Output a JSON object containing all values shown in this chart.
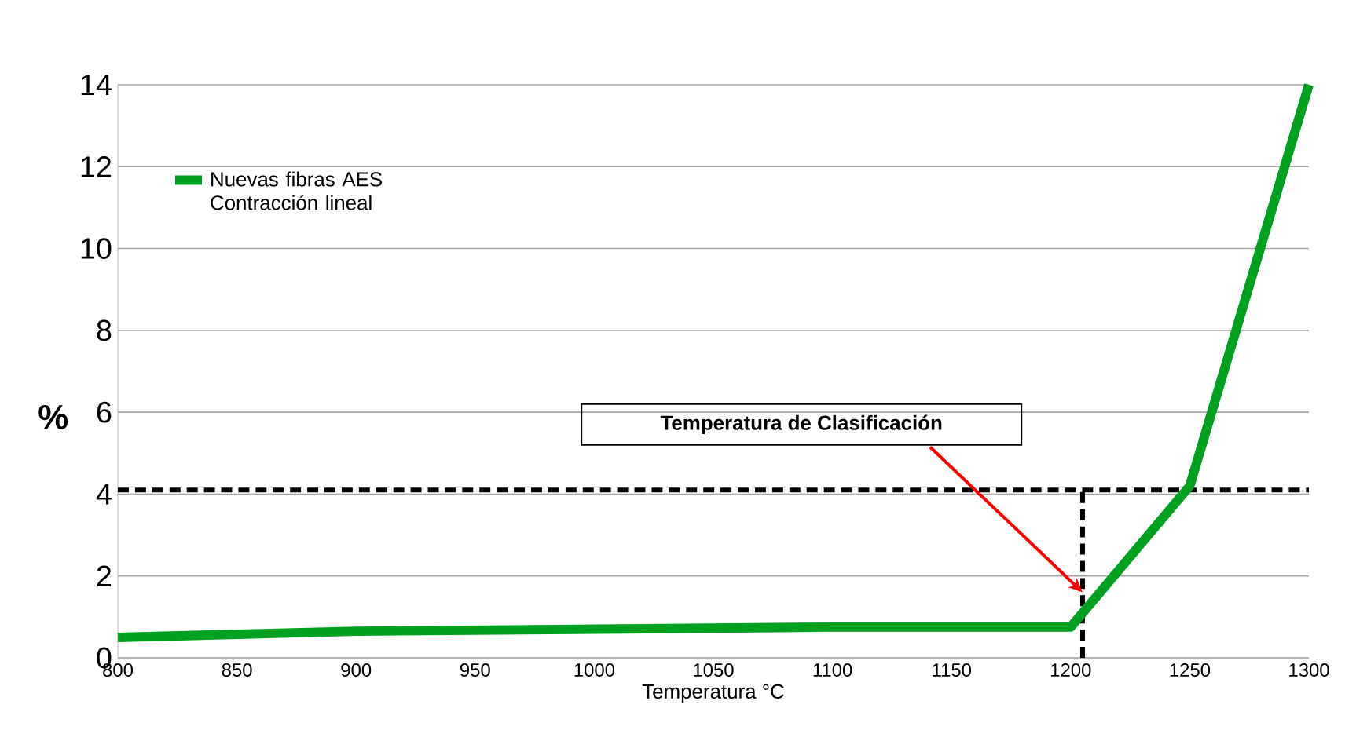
{
  "chart_data": {
    "type": "line",
    "xlabel": "Temperatura  °C",
    "ylabel": "%",
    "x": [
      800,
      900,
      1000,
      1100,
      1200,
      1250,
      1300
    ],
    "series": [
      {
        "name": "Nuevas fibras AES Contracción lineal",
        "color": "#00a020",
        "values": [
          0.5,
          0.65,
          0.7,
          0.75,
          0.75,
          4.2,
          14
        ]
      }
    ],
    "xlim": [
      800,
      1300
    ],
    "xticks": [
      800,
      850,
      900,
      950,
      1000,
      1050,
      1100,
      1150,
      1200,
      1250,
      1300
    ],
    "ylim": [
      0,
      14
    ],
    "yticks": [
      0,
      2,
      4,
      6,
      8,
      10,
      12,
      14
    ],
    "grid": "y",
    "legend": "top left",
    "marker": "none",
    "line_style": "solid",
    "ref_lines": [
      {
        "axis": "y",
        "value": 4.1,
        "color": "#000000",
        "line_style": "dashed"
      },
      {
        "axis": "x",
        "value": 1205,
        "color": "#000000",
        "line_style": "dashed"
      }
    ],
    "annotations": [
      {
        "text": "Temperatura de Clasificación",
        "x": 1205,
        "y": 1.6
      }
    ]
  }
}
